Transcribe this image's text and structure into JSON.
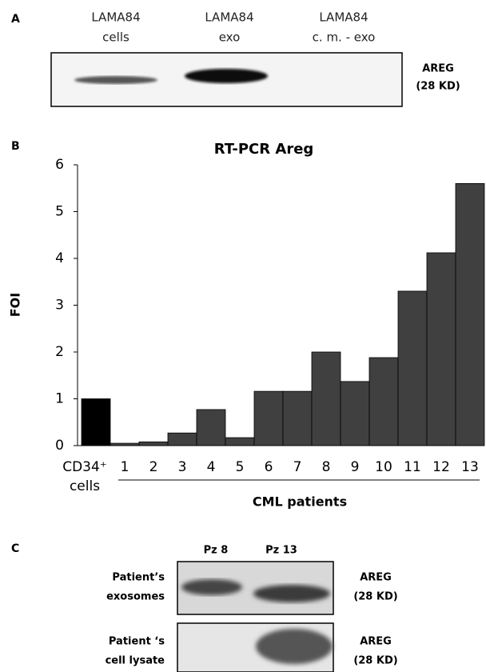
{
  "panel_a": {
    "label": "A",
    "lanes": [
      [
        "LAMA84",
        "cells"
      ],
      [
        "LAMA84",
        "exo"
      ],
      [
        "LAMA84",
        "c. m. - exo"
      ]
    ],
    "marker": [
      "AREG",
      "(28 KD)"
    ]
  },
  "panel_b": {
    "label": "B"
  },
  "chart_data": {
    "type": "bar",
    "title": "RT-PCR Areg",
    "y_label": "FOI",
    "group_label": "CML patients",
    "categories": [
      "CD34⁺ cells",
      "1",
      "2",
      "3",
      "4",
      "5",
      "6",
      "7",
      "8",
      "9",
      "10",
      "11",
      "12",
      "13"
    ],
    "values": [
      1.0,
      0.05,
      0.08,
      0.27,
      0.77,
      0.17,
      1.16,
      1.16,
      2.0,
      1.37,
      1.88,
      3.3,
      4.12,
      5.6
    ],
    "colors": [
      "#000000",
      "#404040",
      "#404040",
      "#404040",
      "#404040",
      "#404040",
      "#404040",
      "#404040",
      "#404040",
      "#404040",
      "#404040",
      "#404040",
      "#404040",
      "#404040"
    ],
    "ylim": [
      0,
      6
    ],
    "yticks": [
      0,
      1,
      2,
      3,
      4,
      5,
      6
    ],
    "grid": false
  },
  "panel_c": {
    "label": "C",
    "lanes": [
      "Pz 8",
      "Pz 13"
    ],
    "rows": [
      {
        "name": [
          "Patient’s",
          "exosomes"
        ],
        "marker": [
          "AREG",
          "(28 KD)"
        ]
      },
      {
        "name": [
          "Patient ‘s",
          "cell lysate"
        ],
        "marker": [
          "AREG",
          "(28 KD)"
        ]
      }
    ]
  }
}
